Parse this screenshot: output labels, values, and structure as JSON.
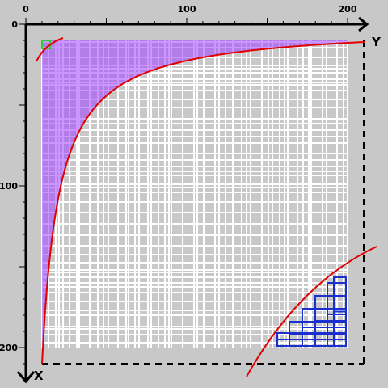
{
  "top_axis": {
    "label": "Y",
    "ticks": [
      "0",
      "100",
      "200"
    ]
  },
  "left_axis": {
    "label": "X",
    "ticks": [
      "0",
      "100",
      "200"
    ]
  }
}
